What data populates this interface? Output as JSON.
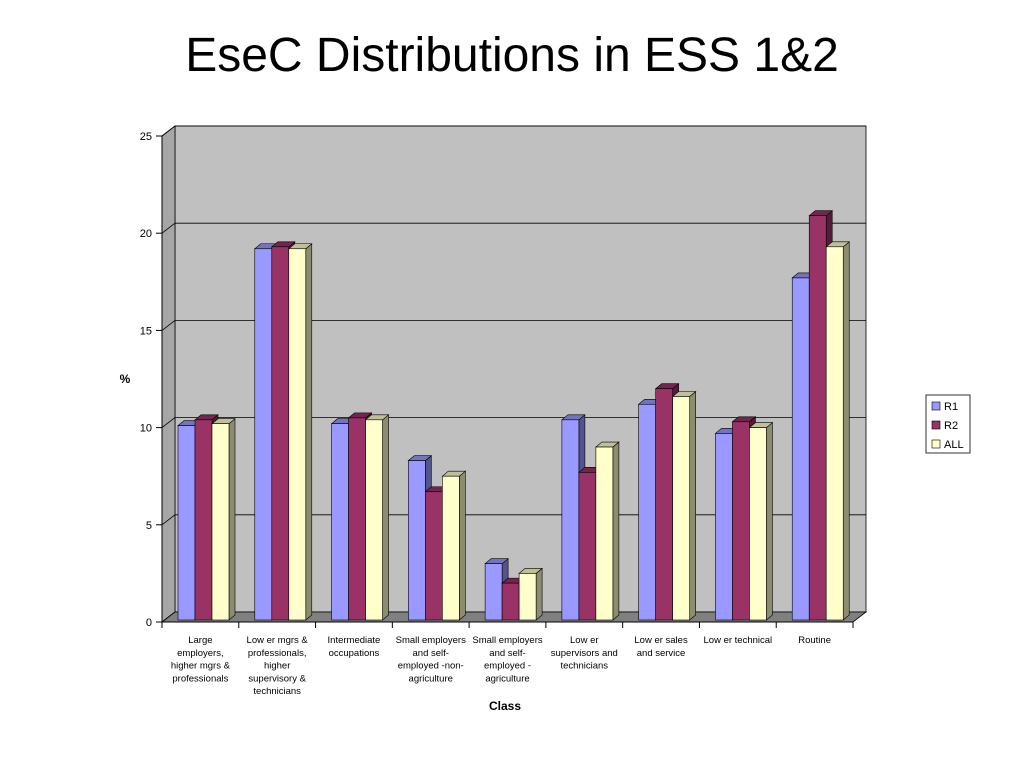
{
  "slide": {
    "title": "EseC Distributions in ESS 1&2"
  },
  "chart_data": {
    "type": "bar",
    "title": "",
    "xlabel": "Class",
    "ylabel": "%",
    "ylim": [
      0,
      25
    ],
    "yticks": [
      0,
      5,
      10,
      15,
      20,
      25
    ],
    "grid": true,
    "legend_position": "right",
    "categories": [
      [
        "Large",
        "employers,",
        "higher mgrs &",
        "professionals"
      ],
      [
        "Low er mgrs &",
        "professionals,",
        "higher",
        "supervisory &",
        "technicians"
      ],
      [
        "Intermediate",
        "occupations"
      ],
      [
        "Small employers",
        "and self-",
        "employed -non-",
        "agriculture"
      ],
      [
        "Small employers",
        "and self-",
        "employed -",
        "agriculture"
      ],
      [
        "Low er",
        "supervisors and",
        "technicians"
      ],
      [
        "Low er sales",
        "and service"
      ],
      [
        "Low er technical"
      ],
      [
        "Routine"
      ]
    ],
    "series": [
      {
        "name": "R1",
        "color": "#9999ff",
        "values": [
          10.1,
          19.2,
          10.2,
          8.3,
          3.0,
          10.4,
          11.2,
          9.7,
          17.7
        ]
      },
      {
        "name": "R2",
        "color": "#993366",
        "values": [
          10.4,
          19.3,
          10.5,
          6.7,
          2.0,
          7.7,
          12.0,
          10.3,
          20.9
        ]
      },
      {
        "name": "ALL",
        "color": "#ffffcc",
        "values": [
          10.2,
          19.2,
          10.4,
          7.5,
          2.5,
          9.0,
          11.6,
          10.0,
          19.3
        ]
      }
    ]
  }
}
